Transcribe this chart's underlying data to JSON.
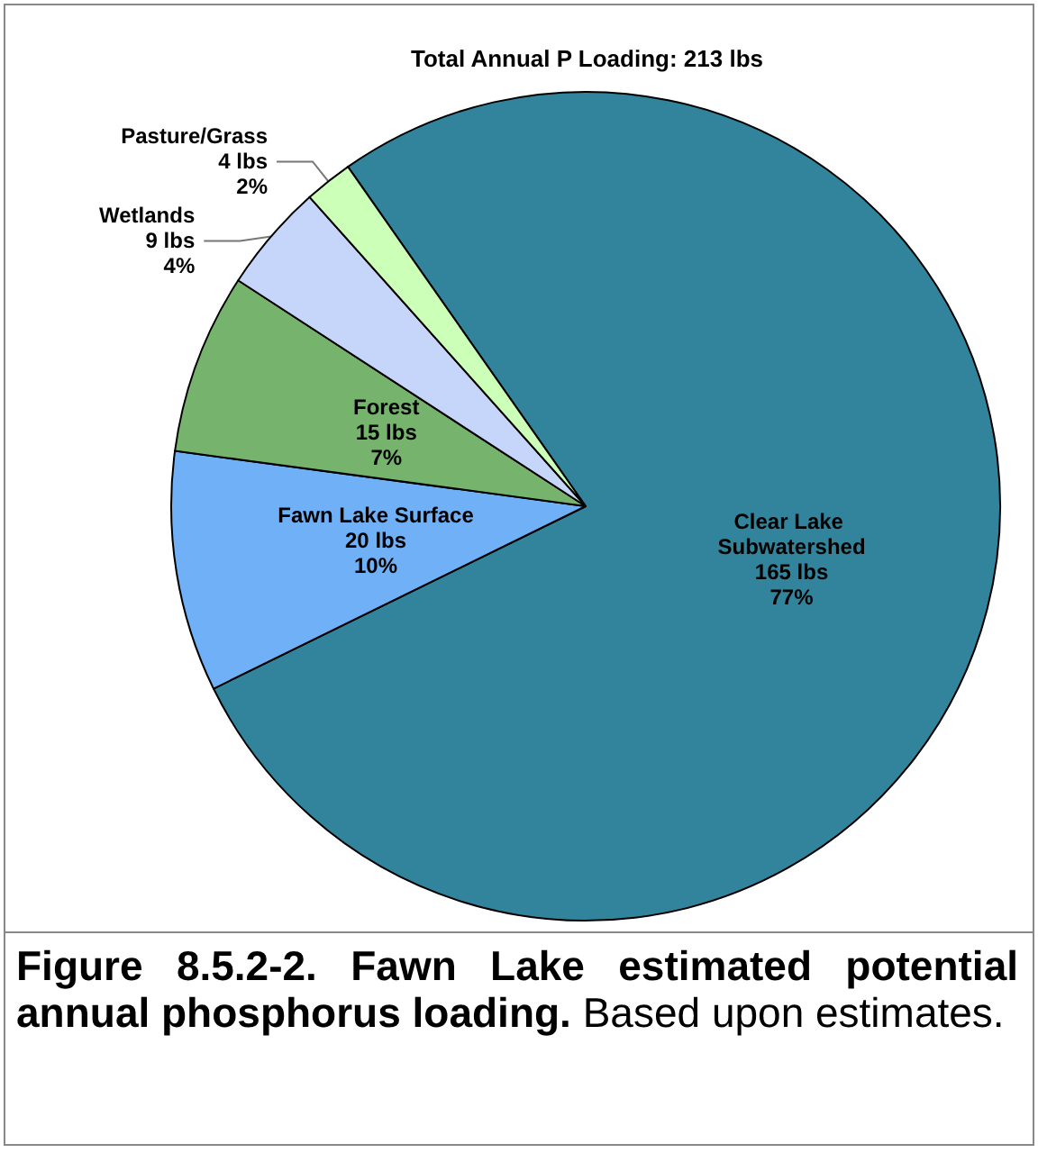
{
  "chart_data": {
    "type": "pie",
    "title": "Total Annual P Loading: 213 lbs",
    "categories": [
      "Clear Lake Subwatershed",
      "Fawn Lake Surface",
      "Forest",
      "Wetlands",
      "Pasture/Grass"
    ],
    "values": [
      165,
      20,
      15,
      9,
      4
    ],
    "value_labels": [
      "165 lbs\n77%",
      "20 lbs\n10%",
      "15 lbs\n7%",
      "9 lbs\n4%",
      "4 lbs\n2%"
    ],
    "colors": [
      "#31849b",
      "#6fb0f7",
      "#76b46e",
      "#c6d6fa",
      "#ccffb8"
    ],
    "annotations": [
      "Figure 8.5.2-2.  Fawn Lake estimated potential annual phosphorus loading.",
      "Based upon estimates."
    ]
  }
}
